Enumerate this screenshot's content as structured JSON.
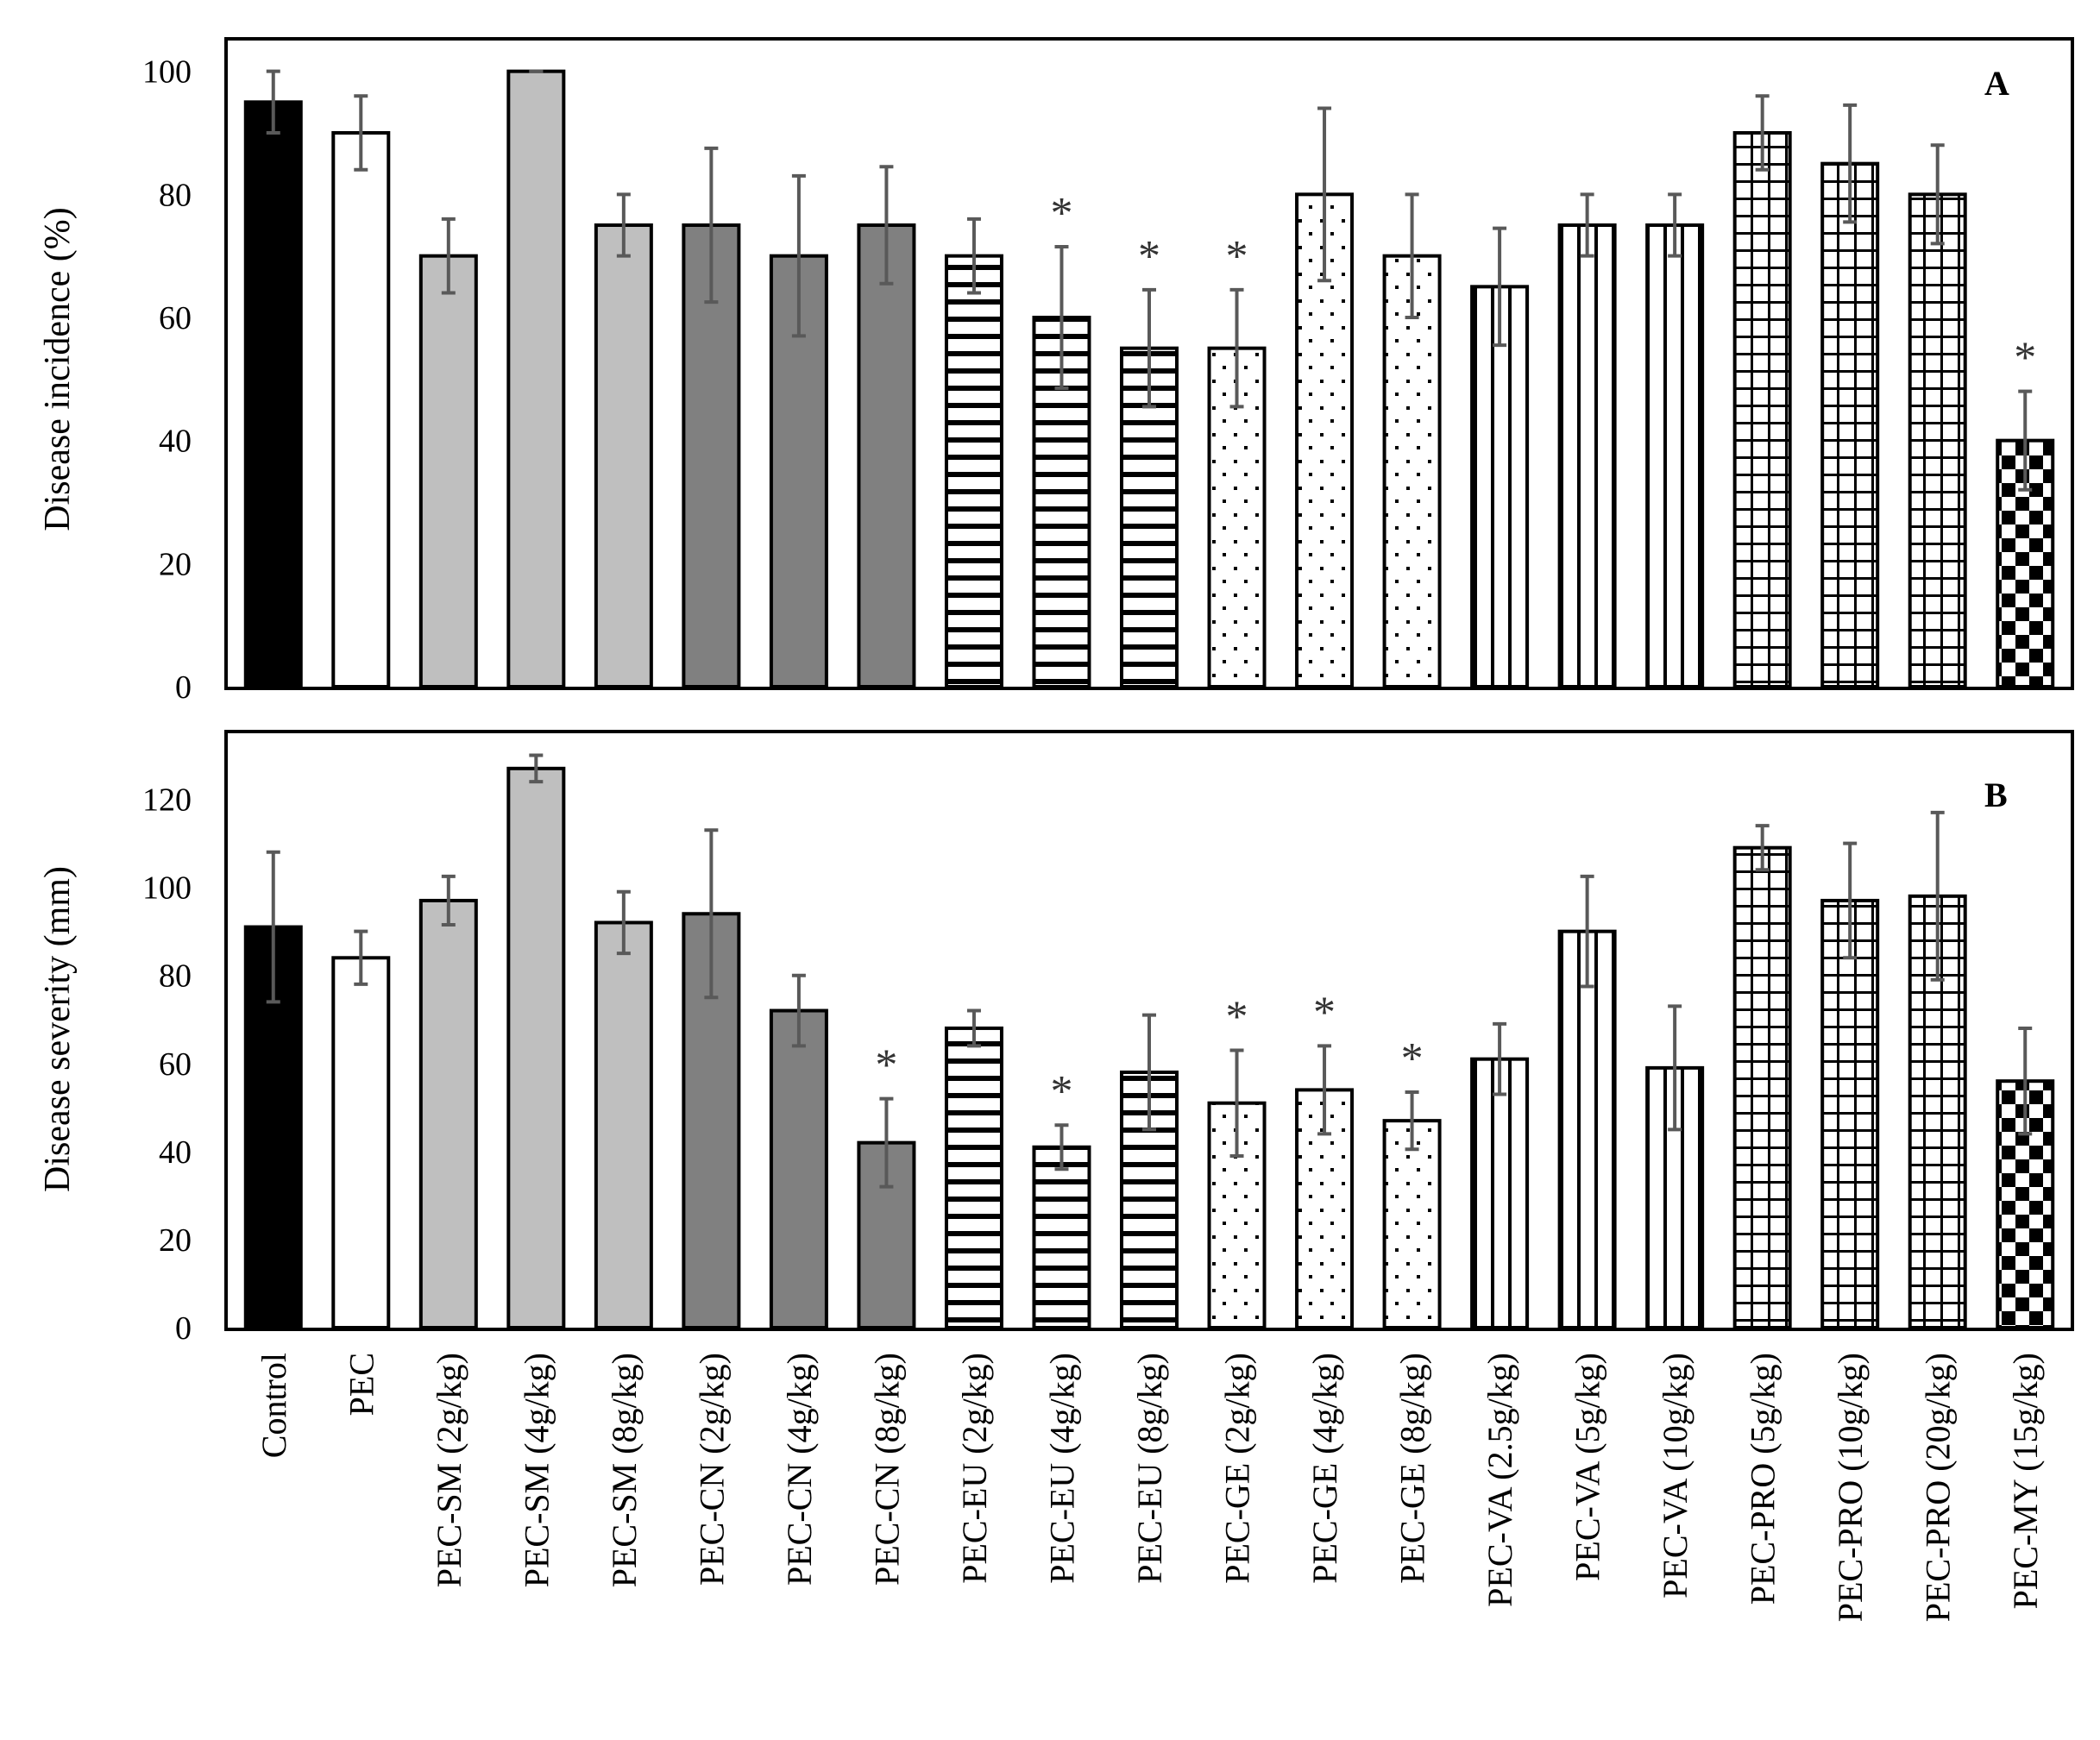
{
  "categories": [
    "Control",
    "PEC",
    "PEC-SM (2g/kg)",
    "PEC-SM (4g/kg)",
    "PEC-SM (8g/kg)",
    "PEC-CN (2g/kg)",
    "PEC-CN (4g/kg)",
    "PEC-CN (8g/kg)",
    "PEC-EU (2g/kg)",
    "PEC-EU (4g/kg)",
    "PEC-EU (8g/kg)",
    "PEC-GE (2g/kg)",
    "PEC-GE (4g/kg)",
    "PEC-GE (8g/kg)",
    "PEC-VA (2.5g/kg)",
    "PEC-VA (5g/kg)",
    "PEC-VA (10g/kg)",
    "PEC-PRO (5g/kg)",
    "PEC-PRO (10g/kg)",
    "PEC-PRO (20g/kg)",
    "PEC-MY (15g/kg)"
  ],
  "fills": [
    "black",
    "white",
    "light",
    "light",
    "light",
    "gray",
    "gray",
    "gray",
    "hlines",
    "hlines",
    "hlines",
    "dots",
    "dots",
    "dots",
    "vlines",
    "vlines",
    "vlines",
    "grid",
    "grid",
    "grid",
    "checker"
  ],
  "colors": {
    "light": "#bfbfbf",
    "gray": "#808080",
    "black": "#000000",
    "error_bar": "#595959",
    "star": "#333333"
  },
  "significance_marker": "*",
  "chart_data": [
    {
      "type": "bar",
      "panel": "A",
      "ylabel": "Disease incidence (%)",
      "ylim": [
        0,
        105
      ],
      "yticks": [
        0,
        20,
        40,
        60,
        80,
        100
      ],
      "values": [
        95,
        90,
        70,
        100,
        75,
        75,
        70,
        75,
        70,
        60,
        55,
        55,
        80,
        70,
        65,
        75,
        75,
        90,
        85,
        80,
        40
      ],
      "errors": [
        5,
        6,
        6,
        0,
        5,
        12.5,
        13,
        9.5,
        6,
        11.5,
        9.5,
        9.5,
        14,
        10,
        9.5,
        5,
        5,
        6,
        9.5,
        8,
        8
      ],
      "significant": [
        false,
        false,
        false,
        false,
        false,
        false,
        false,
        false,
        false,
        true,
        true,
        true,
        false,
        false,
        false,
        false,
        false,
        false,
        false,
        false,
        true
      ]
    },
    {
      "type": "bar",
      "panel": "B",
      "ylabel": "Disease severity (mm)",
      "ylim": [
        0,
        135
      ],
      "yticks": [
        0,
        20,
        40,
        60,
        80,
        100,
        120
      ],
      "values": [
        91,
        84,
        97,
        127,
        92,
        94,
        72,
        42,
        68,
        41,
        58,
        51,
        54,
        47,
        61,
        90,
        59,
        109,
        97,
        98,
        56
      ],
      "errors": [
        17,
        6,
        5.5,
        3,
        7,
        19,
        8,
        10,
        4,
        5,
        13,
        12,
        10,
        6.5,
        8,
        12.5,
        14,
        5,
        13,
        19,
        12
      ],
      "significant": [
        false,
        false,
        false,
        false,
        false,
        false,
        false,
        true,
        false,
        true,
        false,
        true,
        true,
        true,
        false,
        false,
        false,
        false,
        false,
        false,
        false
      ]
    }
  ]
}
